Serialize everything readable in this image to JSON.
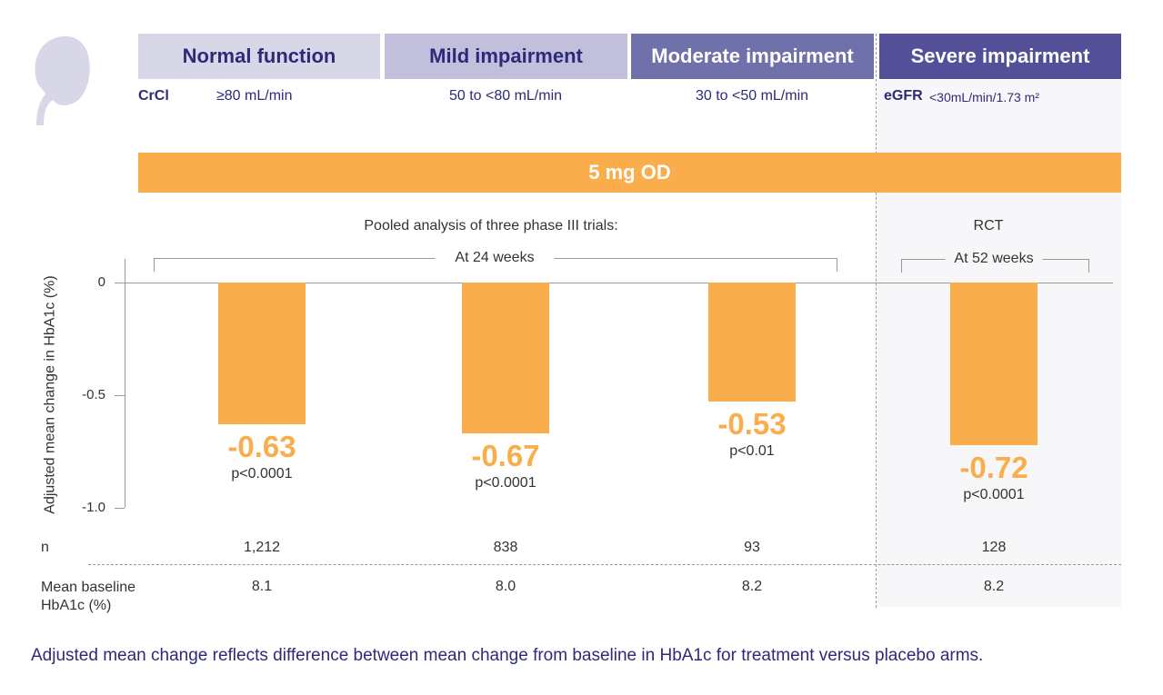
{
  "header": {
    "categories": [
      {
        "label": "Normal function",
        "range": "≥80 mL/min",
        "bg": "#d8d7e8",
        "fg": "#2e2a7a"
      },
      {
        "label": "Mild impairment",
        "range": "50 to <80 mL/min",
        "bg": "#c1bfdc",
        "fg": "#2e2a7a"
      },
      {
        "label": "Moderate impairment",
        "range": "30 to <50 mL/min",
        "bg": "#7070aa",
        "fg": "#ffffff"
      },
      {
        "label": "Severe impairment",
        "range": "<30mL/min/1.73 m²",
        "bg": "#534f98",
        "fg": "#ffffff"
      }
    ],
    "crcl_label": "CrCl",
    "egfr_label": "eGFR"
  },
  "dose_label": "5 mg OD",
  "pooled_label": "Pooled analysis of three phase III trials:",
  "rct_label": "RCT",
  "week24_label": "At 24 weeks",
  "week52_label": "At 52 weeks",
  "chart_data": {
    "type": "bar",
    "categories": [
      "Normal function",
      "Mild impairment",
      "Moderate impairment",
      "Severe impairment"
    ],
    "values": [
      -0.63,
      -0.67,
      -0.53,
      -0.72
    ],
    "value_labels": [
      "-0.63",
      "-0.67",
      "-0.53",
      "-0.72"
    ],
    "p_values": [
      "p<0.0001",
      "p<0.0001",
      "p<0.01",
      "p<0.0001"
    ],
    "ylabel": "Adjusted mean change in HbA1c (%)",
    "yticks": [
      "0",
      "-0.5",
      "-1.0"
    ],
    "ytick_values": [
      0,
      -0.5,
      -1.0
    ],
    "ylim": [
      -1.0,
      0
    ],
    "bar_color": "#f9ad4b"
  },
  "table": {
    "n_label": "n",
    "n_values": [
      "1,212",
      "838",
      "93",
      "128"
    ],
    "baseline_label": "Mean baseline HbA1c (%)",
    "baseline_values": [
      "8.1",
      "8.0",
      "8.2",
      "8.2"
    ]
  },
  "footnote": "Adjusted mean change reflects difference between mean change from baseline in HbA1c for treatment versus placebo arms."
}
